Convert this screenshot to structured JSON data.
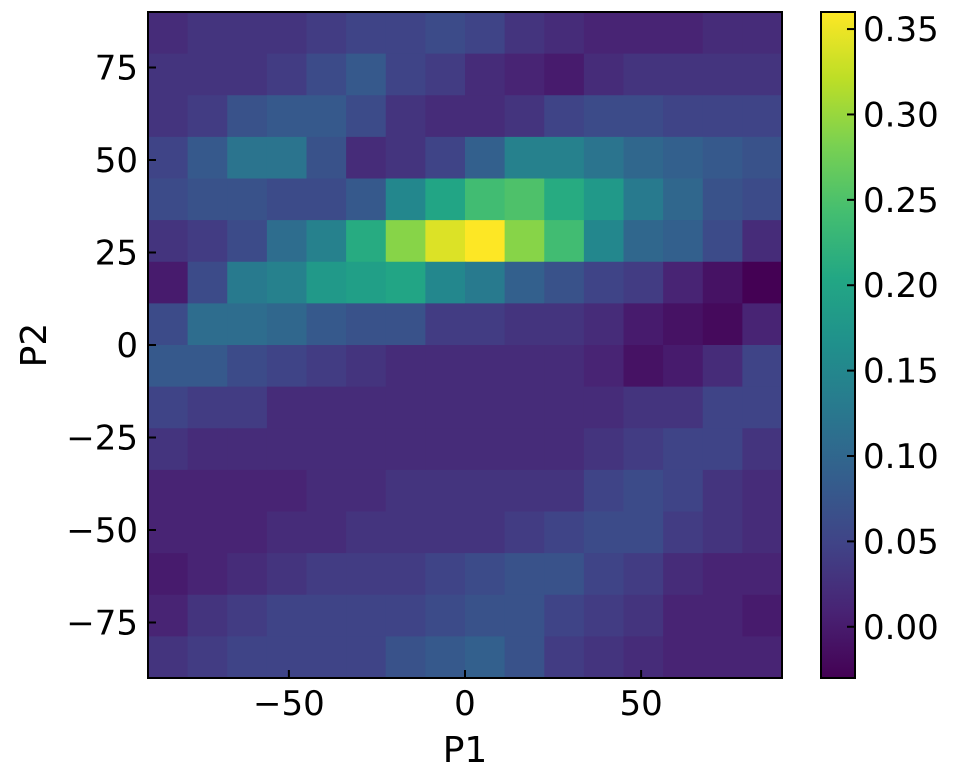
{
  "chart_data": {
    "type": "heatmap",
    "title": "",
    "xlabel": "P1",
    "ylabel": "P2",
    "xlim": [
      -90,
      90
    ],
    "ylim": [
      -90,
      90
    ],
    "grid": false,
    "x_ticks": [
      -50,
      0,
      50
    ],
    "x_tick_labels": [
      "−50",
      "0",
      "50"
    ],
    "y_ticks": [
      -75,
      -50,
      -25,
      0,
      25,
      50,
      75
    ],
    "y_tick_labels": [
      "−75",
      "−50",
      "−25",
      "0",
      "25",
      "50",
      "75"
    ],
    "colormap": "viridis",
    "colorbar": {
      "vmin": -0.03,
      "vmax": 0.36,
      "ticks": [
        0.0,
        0.05,
        0.1,
        0.15,
        0.2,
        0.25,
        0.3,
        0.35
      ],
      "tick_labels": [
        "0.00",
        "0.05",
        "0.10",
        "0.15",
        "0.20",
        "0.25",
        "0.30",
        "0.35"
      ]
    },
    "x_bin_edges": [
      -90,
      -78.75,
      -67.5,
      -56.25,
      -45,
      -33.75,
      -22.5,
      -11.25,
      0,
      11.25,
      22.5,
      33.75,
      45,
      56.25,
      67.5,
      78.75,
      90
    ],
    "y_bin_edges": [
      90,
      78.75,
      67.5,
      56.25,
      45,
      33.75,
      22.5,
      11.25,
      0,
      -11.25,
      -22.5,
      -33.75,
      -45,
      -56.25,
      -67.5,
      -78.75,
      -90
    ],
    "values": [
      [
        0.02,
        0.03,
        0.03,
        0.03,
        0.04,
        0.05,
        0.05,
        0.06,
        0.05,
        0.03,
        0.02,
        0.01,
        0.01,
        0.01,
        0.02,
        0.02
      ],
      [
        0.03,
        0.03,
        0.03,
        0.04,
        0.06,
        0.08,
        0.05,
        0.04,
        0.02,
        0.01,
        0.0,
        0.02,
        0.03,
        0.03,
        0.03,
        0.03
      ],
      [
        0.03,
        0.04,
        0.07,
        0.08,
        0.08,
        0.06,
        0.03,
        0.02,
        0.02,
        0.03,
        0.05,
        0.06,
        0.06,
        0.05,
        0.05,
        0.05
      ],
      [
        0.05,
        0.08,
        0.12,
        0.12,
        0.07,
        0.02,
        0.03,
        0.05,
        0.09,
        0.14,
        0.14,
        0.12,
        0.1,
        0.09,
        0.08,
        0.07
      ],
      [
        0.06,
        0.07,
        0.07,
        0.06,
        0.06,
        0.08,
        0.15,
        0.2,
        0.24,
        0.25,
        0.21,
        0.18,
        0.13,
        0.1,
        0.07,
        0.06
      ],
      [
        0.03,
        0.04,
        0.06,
        0.11,
        0.14,
        0.21,
        0.29,
        0.34,
        0.36,
        0.29,
        0.24,
        0.15,
        0.1,
        0.09,
        0.06,
        0.02
      ],
      [
        0.0,
        0.06,
        0.13,
        0.14,
        0.18,
        0.19,
        0.2,
        0.15,
        0.13,
        0.09,
        0.07,
        0.05,
        0.04,
        0.01,
        -0.01,
        -0.03
      ],
      [
        0.06,
        0.11,
        0.11,
        0.1,
        0.08,
        0.07,
        0.07,
        0.04,
        0.04,
        0.03,
        0.03,
        0.02,
        0.0,
        -0.01,
        -0.02,
        0.01
      ],
      [
        0.08,
        0.08,
        0.06,
        0.05,
        0.04,
        0.03,
        0.02,
        0.02,
        0.02,
        0.02,
        0.02,
        0.01,
        -0.01,
        0.0,
        0.02,
        0.05
      ],
      [
        0.05,
        0.04,
        0.04,
        0.02,
        0.02,
        0.02,
        0.02,
        0.02,
        0.02,
        0.02,
        0.02,
        0.02,
        0.03,
        0.03,
        0.05,
        0.05
      ],
      [
        0.03,
        0.02,
        0.02,
        0.02,
        0.02,
        0.02,
        0.02,
        0.02,
        0.02,
        0.02,
        0.02,
        0.03,
        0.04,
        0.05,
        0.05,
        0.03
      ],
      [
        0.01,
        0.01,
        0.01,
        0.01,
        0.02,
        0.02,
        0.03,
        0.03,
        0.03,
        0.03,
        0.03,
        0.05,
        0.06,
        0.05,
        0.03,
        0.02
      ],
      [
        0.01,
        0.01,
        0.01,
        0.02,
        0.02,
        0.03,
        0.03,
        0.03,
        0.03,
        0.04,
        0.05,
        0.06,
        0.06,
        0.04,
        0.03,
        0.02
      ],
      [
        0.0,
        0.01,
        0.02,
        0.03,
        0.04,
        0.04,
        0.04,
        0.05,
        0.06,
        0.07,
        0.07,
        0.05,
        0.04,
        0.02,
        0.01,
        0.01
      ],
      [
        0.01,
        0.03,
        0.04,
        0.05,
        0.05,
        0.05,
        0.05,
        0.06,
        0.07,
        0.07,
        0.05,
        0.04,
        0.03,
        0.01,
        0.01,
        0.0
      ],
      [
        0.03,
        0.04,
        0.05,
        0.05,
        0.05,
        0.05,
        0.07,
        0.08,
        0.09,
        0.07,
        0.04,
        0.03,
        0.02,
        0.01,
        0.01,
        0.01
      ]
    ]
  }
}
